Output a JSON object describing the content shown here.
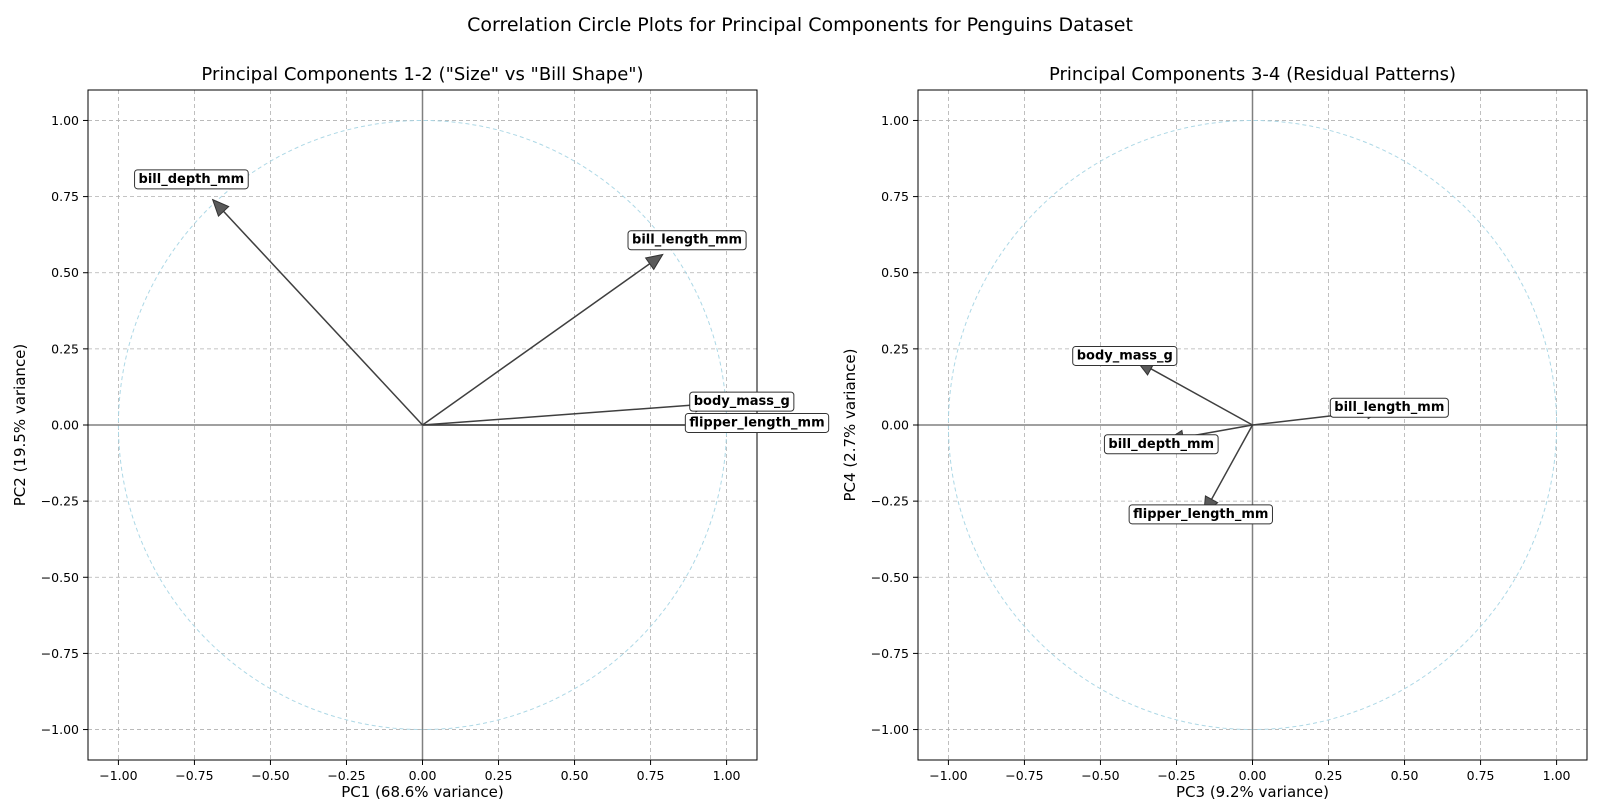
{
  "figure_title": "Correlation Circle Plots for Principal Components for Penguins Dataset",
  "colors": {
    "arrow": "#3f3f3f",
    "arrow_head": "#5a5a5a",
    "unit_circle": "#add8e6",
    "zero_lines": "#808080",
    "grid": "#b0b0b0"
  },
  "chart_data": [
    {
      "type": "scatter",
      "title": "Principal Components 1-2 (\"Size\" vs \"Bill Shape\")",
      "xlabel": "PC1 (68.6% variance)",
      "ylabel": "PC2 (19.5% variance)",
      "xlim": [
        -1.1,
        1.1
      ],
      "ylim": [
        -1.1,
        1.1
      ],
      "xticks": [
        -1.0,
        -0.75,
        -0.5,
        -0.25,
        0.0,
        0.25,
        0.5,
        0.75,
        1.0
      ],
      "yticks": [
        -1.0,
        -0.75,
        -0.5,
        -0.25,
        0.0,
        0.25,
        0.5,
        0.75,
        1.0
      ],
      "xtick_labels": [
        "−1.00",
        "−0.75",
        "−0.50",
        "−0.25",
        "0.00",
        "0.25",
        "0.50",
        "0.75",
        "1.00"
      ],
      "ytick_labels": [
        "−1.00",
        "−0.75",
        "−0.50",
        "−0.25",
        "0.00",
        "0.25",
        "0.50",
        "0.75",
        "1.00"
      ],
      "grid": true,
      "unit_circle": true,
      "vectors": [
        {
          "name": "bill_length_mm",
          "x": 0.79,
          "y": 0.56,
          "label_x": 0.87,
          "label_y": 0.61
        },
        {
          "name": "bill_depth_mm",
          "x": -0.69,
          "y": 0.74,
          "label_x": -0.76,
          "label_y": 0.81
        },
        {
          "name": "flipper_length_mm",
          "x": 0.98,
          "y": 0.0,
          "label_x": 1.1,
          "label_y": 0.01
        },
        {
          "name": "body_mass_g",
          "x": 0.95,
          "y": 0.07,
          "label_x": 1.05,
          "label_y": 0.08
        }
      ]
    },
    {
      "type": "scatter",
      "title": "Principal Components 3-4 (Residual Patterns)",
      "xlabel": "PC3 (9.2% variance)",
      "ylabel": "PC4 (2.7% variance)",
      "xlim": [
        -1.1,
        1.1
      ],
      "ylim": [
        -1.1,
        1.1
      ],
      "xticks": [
        -1.0,
        -0.75,
        -0.5,
        -0.25,
        0.0,
        0.25,
        0.5,
        0.75,
        1.0
      ],
      "yticks": [
        -1.0,
        -0.75,
        -0.5,
        -0.25,
        0.0,
        0.25,
        0.5,
        0.75,
        1.0
      ],
      "xtick_labels": [
        "−1.00",
        "−0.75",
        "−0.50",
        "−0.25",
        "0.00",
        "0.25",
        "0.50",
        "0.75",
        "1.00"
      ],
      "ytick_labels": [
        "−1.00",
        "−0.75",
        "−0.50",
        "−0.25",
        "0.00",
        "0.25",
        "0.50",
        "0.75",
        "1.00"
      ],
      "grid": true,
      "unit_circle": true,
      "vectors": [
        {
          "name": "bill_length_mm",
          "x": 0.43,
          "y": 0.05,
          "label_x": 0.45,
          "label_y": 0.06
        },
        {
          "name": "bill_depth_mm",
          "x": -0.28,
          "y": -0.05,
          "label_x": -0.3,
          "label_y": -0.06
        },
        {
          "name": "flipper_length_mm",
          "x": -0.16,
          "y": -0.29,
          "label_x": -0.17,
          "label_y": -0.29
        },
        {
          "name": "body_mass_g",
          "x": -0.38,
          "y": 0.21,
          "label_x": -0.42,
          "label_y": 0.23
        }
      ]
    }
  ]
}
